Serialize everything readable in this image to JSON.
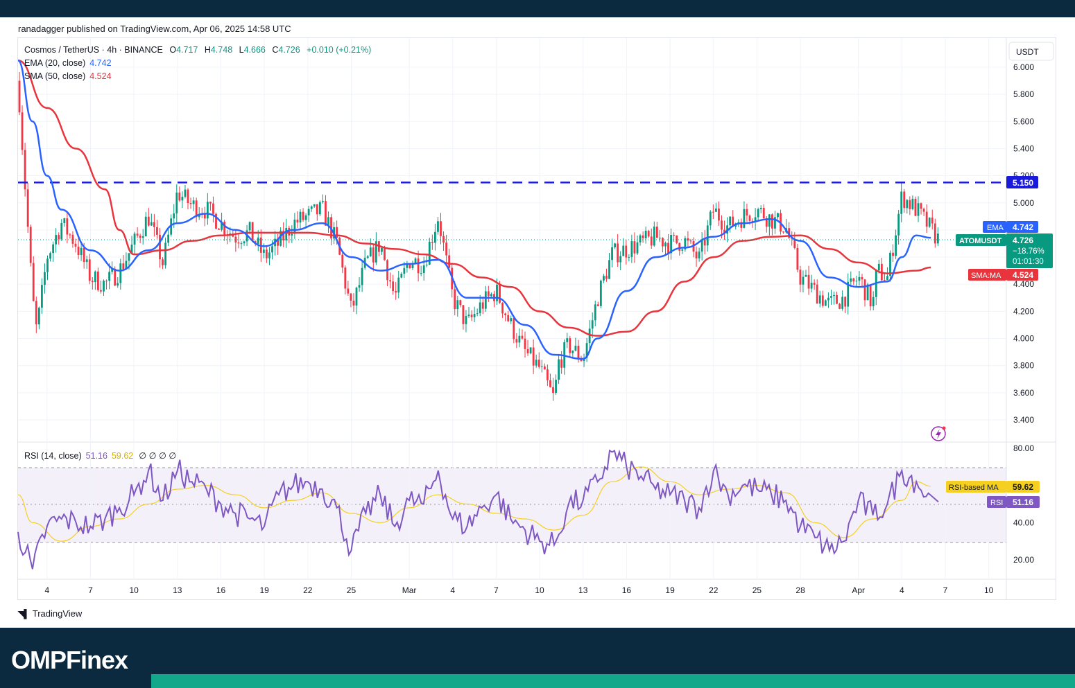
{
  "header": {
    "published": "ranadagger published on TradingView.com, Apr 06, 2025 14:58 UTC"
  },
  "legend": {
    "symbol": "Cosmos / TetherUS · 4h · BINANCE",
    "o_label": "O",
    "o": "4.717",
    "h_label": "H",
    "h": "4.748",
    "l_label": "L",
    "l": "4.666",
    "c_label": "C",
    "c": "4.726",
    "change": "+0.010 (+0.21%)",
    "ema": "EMA (20, close)",
    "ema_value": "4.742",
    "sma": "SMA (50, close)",
    "sma_value": "4.524"
  },
  "rsi_legend": {
    "label": "RSI (14, close)",
    "rsi": "51.16",
    "ma": "59.62",
    "extra": "∅ ∅ ∅ ∅"
  },
  "price_axis": {
    "currency": "USDT",
    "ticks": [
      "6.000",
      "5.800",
      "5.600",
      "5.400",
      "5.200",
      "5.000",
      "4.800",
      "4.600",
      "4.400",
      "4.200",
      "4.000",
      "3.800",
      "3.600",
      "3.400"
    ]
  },
  "rsi_axis": {
    "ticks": [
      "80.00",
      "60.00",
      "40.00",
      "20.00"
    ]
  },
  "time_axis": {
    "ticks": [
      "4",
      "7",
      "10",
      "13",
      "16",
      "19",
      "22",
      "25",
      "Mar",
      "4",
      "7",
      "10",
      "13",
      "16",
      "19",
      "22",
      "25",
      "28",
      "Apr",
      "4",
      "7",
      "10"
    ]
  },
  "badges": {
    "resistance": "5.150",
    "ema_tag": "EMA",
    "ema_value": "4.742",
    "symbol_tag": "ATOMUSDT",
    "price": "4.726",
    "pct": "−18.76%",
    "countdown": "01:01:30",
    "sma_tag": "SMA:MA",
    "sma_value": "4.524",
    "rsi_ma_tag": "RSI-based MA",
    "rsi_ma_value": "59.62",
    "rsi_tag": "RSI",
    "rsi_value": "51.16"
  },
  "footer": {
    "tradingview": "TradingView",
    "brand": "OMPFinex"
  },
  "colors": {
    "up": "#089981",
    "down": "#f23645",
    "ema": "#2962ff",
    "sma": "#e8343c",
    "rsi": "#7e57c2",
    "rsi_ma": "#f5d020",
    "resistance": "#1a1adb"
  },
  "chart_data": {
    "type": "candlestick",
    "timeframe": "4h",
    "range": {
      "start": "2025-02-02",
      "end": "2025-04-06"
    },
    "ylim": [
      3.3,
      6.1
    ],
    "horizontal_lines": [
      {
        "value": 5.15,
        "style": "dashed",
        "name": "resistance"
      }
    ],
    "close_path": [
      {
        "date": "2025-02-02",
        "value": 5.9
      },
      {
        "date": "2025-02-03",
        "value": 4.3
      },
      {
        "date": "2025-02-03",
        "value": 4.05
      },
      {
        "date": "2025-02-04",
        "value": 4.6
      },
      {
        "date": "2025-02-05",
        "value": 4.85
      },
      {
        "date": "2025-02-06",
        "value": 4.7
      },
      {
        "date": "2025-02-07",
        "value": 4.45
      },
      {
        "date": "2025-02-08",
        "value": 4.4
      },
      {
        "date": "2025-02-09",
        "value": 4.5
      },
      {
        "date": "2025-02-10",
        "value": 4.7
      },
      {
        "date": "2025-02-11",
        "value": 4.9
      },
      {
        "date": "2025-02-12",
        "value": 4.55
      },
      {
        "date": "2025-02-13",
        "value": 5.08
      },
      {
        "date": "2025-02-14",
        "value": 4.98
      },
      {
        "date": "2025-02-15",
        "value": 4.95
      },
      {
        "date": "2025-02-16",
        "value": 4.85
      },
      {
        "date": "2025-02-17",
        "value": 4.75
      },
      {
        "date": "2025-02-18",
        "value": 4.78
      },
      {
        "date": "2025-02-19",
        "value": 4.6
      },
      {
        "date": "2025-02-20",
        "value": 4.7
      },
      {
        "date": "2025-02-21",
        "value": 4.85
      },
      {
        "date": "2025-02-22",
        "value": 4.9
      },
      {
        "date": "2025-02-23",
        "value": 4.95
      },
      {
        "date": "2025-02-24",
        "value": 4.7
      },
      {
        "date": "2025-02-25",
        "value": 4.2
      },
      {
        "date": "2025-02-26",
        "value": 4.55
      },
      {
        "date": "2025-02-27",
        "value": 4.7
      },
      {
        "date": "2025-02-28",
        "value": 4.3
      },
      {
        "date": "2025-03-01",
        "value": 4.58
      },
      {
        "date": "2025-03-02",
        "value": 4.55
      },
      {
        "date": "2025-03-03",
        "value": 4.9
      },
      {
        "date": "2025-03-04",
        "value": 4.3
      },
      {
        "date": "2025-03-05",
        "value": 4.1
      },
      {
        "date": "2025-03-06",
        "value": 4.25
      },
      {
        "date": "2025-03-07",
        "value": 4.35
      },
      {
        "date": "2025-03-08",
        "value": 4.1
      },
      {
        "date": "2025-03-09",
        "value": 3.9
      },
      {
        "date": "2025-03-10",
        "value": 3.78
      },
      {
        "date": "2025-03-11",
        "value": 3.55
      },
      {
        "date": "2025-03-11",
        "value": 3.82
      },
      {
        "date": "2025-03-12",
        "value": 3.95
      },
      {
        "date": "2025-03-13",
        "value": 3.85
      },
      {
        "date": "2025-03-14",
        "value": 4.3
      },
      {
        "date": "2025-03-15",
        "value": 4.62
      },
      {
        "date": "2025-03-16",
        "value": 4.66
      },
      {
        "date": "2025-03-17",
        "value": 4.7
      },
      {
        "date": "2025-03-18",
        "value": 4.75
      },
      {
        "date": "2025-03-19",
        "value": 4.7
      },
      {
        "date": "2025-03-20",
        "value": 4.72
      },
      {
        "date": "2025-03-21",
        "value": 4.58
      },
      {
        "date": "2025-03-22",
        "value": 4.95
      },
      {
        "date": "2025-03-23",
        "value": 4.82
      },
      {
        "date": "2025-03-24",
        "value": 4.9
      },
      {
        "date": "2025-03-25",
        "value": 4.95
      },
      {
        "date": "2025-03-26",
        "value": 4.88
      },
      {
        "date": "2025-03-27",
        "value": 4.82
      },
      {
        "date": "2025-03-28",
        "value": 4.45
      },
      {
        "date": "2025-03-29",
        "value": 4.35
      },
      {
        "date": "2025-03-30",
        "value": 4.25
      },
      {
        "date": "2025-03-31",
        "value": 4.3
      },
      {
        "date": "2025-04-01",
        "value": 4.45
      },
      {
        "date": "2025-04-02",
        "value": 4.25
      },
      {
        "date": "2025-04-02",
        "value": 4.5
      },
      {
        "date": "2025-04-03",
        "value": 4.45
      },
      {
        "date": "2025-04-04",
        "value": 5.05
      },
      {
        "date": "2025-04-05",
        "value": 4.95
      },
      {
        "date": "2025-04-06",
        "value": 4.73
      }
    ],
    "ema20": [
      {
        "date": "2025-02-02",
        "value": 6.05
      },
      {
        "date": "2025-02-03",
        "value": 5.6
      },
      {
        "date": "2025-02-04",
        "value": 5.2
      },
      {
        "date": "2025-02-05",
        "value": 4.95
      },
      {
        "date": "2025-02-07",
        "value": 4.65
      },
      {
        "date": "2025-02-09",
        "value": 4.5
      },
      {
        "date": "2025-02-11",
        "value": 4.65
      },
      {
        "date": "2025-02-13",
        "value": 4.85
      },
      {
        "date": "2025-02-15",
        "value": 4.92
      },
      {
        "date": "2025-02-17",
        "value": 4.8
      },
      {
        "date": "2025-02-19",
        "value": 4.68
      },
      {
        "date": "2025-02-21",
        "value": 4.8
      },
      {
        "date": "2025-02-23",
        "value": 4.85
      },
      {
        "date": "2025-02-25",
        "value": 4.6
      },
      {
        "date": "2025-02-27",
        "value": 4.5
      },
      {
        "date": "2025-03-01",
        "value": 4.55
      },
      {
        "date": "2025-03-03",
        "value": 4.58
      },
      {
        "date": "2025-03-05",
        "value": 4.3
      },
      {
        "date": "2025-03-07",
        "value": 4.3
      },
      {
        "date": "2025-03-09",
        "value": 4.1
      },
      {
        "date": "2025-03-11",
        "value": 3.88
      },
      {
        "date": "2025-03-13",
        "value": 3.85
      },
      {
        "date": "2025-03-14",
        "value": 4.0
      },
      {
        "date": "2025-03-16",
        "value": 4.35
      },
      {
        "date": "2025-03-18",
        "value": 4.6
      },
      {
        "date": "2025-03-20",
        "value": 4.67
      },
      {
        "date": "2025-03-22",
        "value": 4.75
      },
      {
        "date": "2025-03-24",
        "value": 4.85
      },
      {
        "date": "2025-03-26",
        "value": 4.88
      },
      {
        "date": "2025-03-28",
        "value": 4.72
      },
      {
        "date": "2025-03-30",
        "value": 4.45
      },
      {
        "date": "2025-04-01",
        "value": 4.38
      },
      {
        "date": "2025-04-03",
        "value": 4.42
      },
      {
        "date": "2025-04-04",
        "value": 4.6
      },
      {
        "date": "2025-04-05",
        "value": 4.76
      },
      {
        "date": "2025-04-06",
        "value": 4.742
      }
    ],
    "sma50": [
      {
        "date": "2025-02-02",
        "value": 6.05
      },
      {
        "date": "2025-02-04",
        "value": 5.7
      },
      {
        "date": "2025-02-06",
        "value": 5.4
      },
      {
        "date": "2025-02-08",
        "value": 5.1
      },
      {
        "date": "2025-02-09",
        "value": 4.8
      },
      {
        "date": "2025-02-10",
        "value": 4.62
      },
      {
        "date": "2025-02-12",
        "value": 4.65
      },
      {
        "date": "2025-02-14",
        "value": 4.72
      },
      {
        "date": "2025-02-16",
        "value": 4.76
      },
      {
        "date": "2025-02-18",
        "value": 4.78
      },
      {
        "date": "2025-02-20",
        "value": 4.78
      },
      {
        "date": "2025-02-22",
        "value": 4.78
      },
      {
        "date": "2025-02-24",
        "value": 4.76
      },
      {
        "date": "2025-02-26",
        "value": 4.7
      },
      {
        "date": "2025-02-28",
        "value": 4.66
      },
      {
        "date": "2025-03-02",
        "value": 4.62
      },
      {
        "date": "2025-03-04",
        "value": 4.55
      },
      {
        "date": "2025-03-06",
        "value": 4.45
      },
      {
        "date": "2025-03-08",
        "value": 4.38
      },
      {
        "date": "2025-03-10",
        "value": 4.2
      },
      {
        "date": "2025-03-12",
        "value": 4.08
      },
      {
        "date": "2025-03-14",
        "value": 4.02
      },
      {
        "date": "2025-03-16",
        "value": 4.05
      },
      {
        "date": "2025-03-18",
        "value": 4.2
      },
      {
        "date": "2025-03-20",
        "value": 4.42
      },
      {
        "date": "2025-03-22",
        "value": 4.6
      },
      {
        "date": "2025-03-24",
        "value": 4.72
      },
      {
        "date": "2025-03-26",
        "value": 4.75
      },
      {
        "date": "2025-03-28",
        "value": 4.76
      },
      {
        "date": "2025-03-30",
        "value": 4.66
      },
      {
        "date": "2025-04-01",
        "value": 4.56
      },
      {
        "date": "2025-04-03",
        "value": 4.48
      },
      {
        "date": "2025-04-05",
        "value": 4.5
      },
      {
        "date": "2025-04-06",
        "value": 4.524
      }
    ],
    "rsi": {
      "levels": [
        70,
        30
      ],
      "ylim": [
        10,
        85
      ],
      "values": [
        {
          "date": "2025-02-02",
          "value": 35
        },
        {
          "date": "2025-02-03",
          "value": 15
        },
        {
          "date": "2025-02-04",
          "value": 38
        },
        {
          "date": "2025-02-05",
          "value": 42
        },
        {
          "date": "2025-02-06",
          "value": 40
        },
        {
          "date": "2025-02-07",
          "value": 38
        },
        {
          "date": "2025-02-08",
          "value": 42
        },
        {
          "date": "2025-02-09",
          "value": 48
        },
        {
          "date": "2025-02-10",
          "value": 55
        },
        {
          "date": "2025-02-11",
          "value": 68
        },
        {
          "date": "2025-02-12",
          "value": 52
        },
        {
          "date": "2025-02-13",
          "value": 68
        },
        {
          "date": "2025-02-14",
          "value": 62
        },
        {
          "date": "2025-02-15",
          "value": 58
        },
        {
          "date": "2025-02-16",
          "value": 50
        },
        {
          "date": "2025-02-17",
          "value": 45
        },
        {
          "date": "2025-02-18",
          "value": 42
        },
        {
          "date": "2025-02-19",
          "value": 38
        },
        {
          "date": "2025-02-20",
          "value": 55
        },
        {
          "date": "2025-02-21",
          "value": 60
        },
        {
          "date": "2025-02-22",
          "value": 62
        },
        {
          "date": "2025-02-23",
          "value": 58
        },
        {
          "date": "2025-02-24",
          "value": 48
        },
        {
          "date": "2025-02-25",
          "value": 25
        },
        {
          "date": "2025-02-26",
          "value": 45
        },
        {
          "date": "2025-02-27",
          "value": 55
        },
        {
          "date": "2025-02-28",
          "value": 38
        },
        {
          "date": "2025-03-01",
          "value": 52
        },
        {
          "date": "2025-03-02",
          "value": 50
        },
        {
          "date": "2025-03-03",
          "value": 68
        },
        {
          "date": "2025-03-04",
          "value": 42
        },
        {
          "date": "2025-03-05",
          "value": 38
        },
        {
          "date": "2025-03-06",
          "value": 48
        },
        {
          "date": "2025-03-07",
          "value": 55
        },
        {
          "date": "2025-03-08",
          "value": 42
        },
        {
          "date": "2025-03-09",
          "value": 36
        },
        {
          "date": "2025-03-10",
          "value": 30
        },
        {
          "date": "2025-03-11",
          "value": 28
        },
        {
          "date": "2025-03-12",
          "value": 50
        },
        {
          "date": "2025-03-13",
          "value": 52
        },
        {
          "date": "2025-03-14",
          "value": 62
        },
        {
          "date": "2025-03-15",
          "value": 78
        },
        {
          "date": "2025-03-16",
          "value": 70
        },
        {
          "date": "2025-03-17",
          "value": 65
        },
        {
          "date": "2025-03-18",
          "value": 58
        },
        {
          "date": "2025-03-19",
          "value": 55
        },
        {
          "date": "2025-03-20",
          "value": 52
        },
        {
          "date": "2025-03-21",
          "value": 48
        },
        {
          "date": "2025-03-22",
          "value": 68
        },
        {
          "date": "2025-03-23",
          "value": 55
        },
        {
          "date": "2025-03-24",
          "value": 60
        },
        {
          "date": "2025-03-25",
          "value": 58
        },
        {
          "date": "2025-03-26",
          "value": 55
        },
        {
          "date": "2025-03-27",
          "value": 52
        },
        {
          "date": "2025-03-28",
          "value": 38
        },
        {
          "date": "2025-03-29",
          "value": 32
        },
        {
          "date": "2025-03-30",
          "value": 25
        },
        {
          "date": "2025-03-31",
          "value": 30
        },
        {
          "date": "2025-04-01",
          "value": 52
        },
        {
          "date": "2025-04-02",
          "value": 44
        },
        {
          "date": "2025-04-03",
          "value": 50
        },
        {
          "date": "2025-04-04",
          "value": 68
        },
        {
          "date": "2025-04-05",
          "value": 62
        },
        {
          "date": "2025-04-06",
          "value": 51.16
        }
      ],
      "ma": [
        {
          "date": "2025-02-02",
          "value": 55
        },
        {
          "date": "2025-02-03",
          "value": 40
        },
        {
          "date": "2025-02-05",
          "value": 30
        },
        {
          "date": "2025-02-07",
          "value": 38
        },
        {
          "date": "2025-02-09",
          "value": 42
        },
        {
          "date": "2025-02-11",
          "value": 50
        },
        {
          "date": "2025-02-13",
          "value": 58
        },
        {
          "date": "2025-02-15",
          "value": 60
        },
        {
          "date": "2025-02-17",
          "value": 55
        },
        {
          "date": "2025-02-19",
          "value": 48
        },
        {
          "date": "2025-02-21",
          "value": 52
        },
        {
          "date": "2025-02-23",
          "value": 56
        },
        {
          "date": "2025-02-25",
          "value": 45
        },
        {
          "date": "2025-02-27",
          "value": 40
        },
        {
          "date": "2025-03-01",
          "value": 48
        },
        {
          "date": "2025-03-03",
          "value": 55
        },
        {
          "date": "2025-03-05",
          "value": 50
        },
        {
          "date": "2025-03-07",
          "value": 45
        },
        {
          "date": "2025-03-09",
          "value": 42
        },
        {
          "date": "2025-03-11",
          "value": 36
        },
        {
          "date": "2025-03-13",
          "value": 44
        },
        {
          "date": "2025-03-15",
          "value": 62
        },
        {
          "date": "2025-03-17",
          "value": 70
        },
        {
          "date": "2025-03-19",
          "value": 62
        },
        {
          "date": "2025-03-21",
          "value": 55
        },
        {
          "date": "2025-03-23",
          "value": 58
        },
        {
          "date": "2025-03-25",
          "value": 60
        },
        {
          "date": "2025-03-27",
          "value": 56
        },
        {
          "date": "2025-03-29",
          "value": 40
        },
        {
          "date": "2025-03-31",
          "value": 32
        },
        {
          "date": "2025-04-02",
          "value": 42
        },
        {
          "date": "2025-04-04",
          "value": 52
        },
        {
          "date": "2025-04-05",
          "value": 62
        },
        {
          "date": "2025-04-06",
          "value": 59.62
        }
      ]
    }
  }
}
